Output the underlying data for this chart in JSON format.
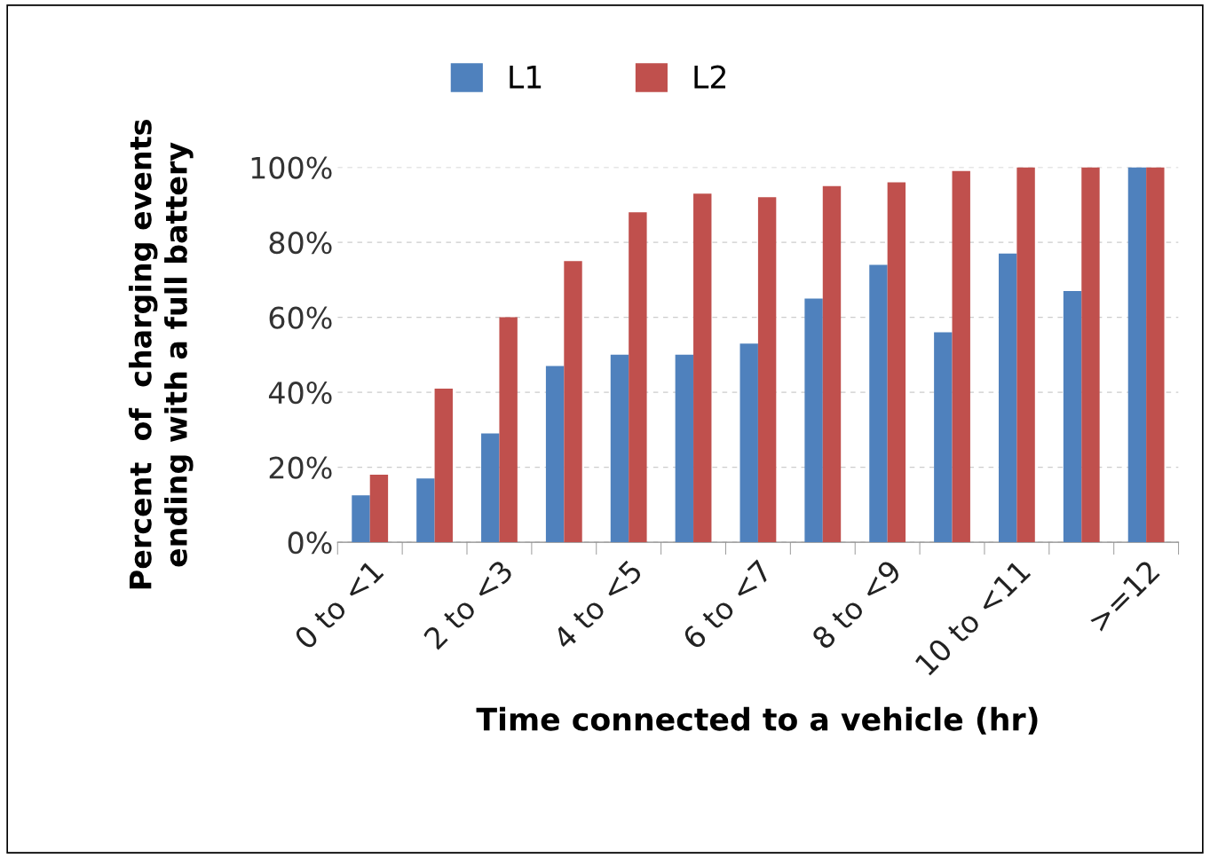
{
  "chart_data": {
    "type": "bar",
    "xlabel": "Time connected to a vehicle (hr)",
    "ylabel": "Percent  of  charging events\nending with a full battery",
    "categories": [
      "0 to <1",
      null,
      "2 to <3",
      null,
      "4 to <5",
      null,
      "6 to <7",
      null,
      "8 to <9",
      null,
      "10 to <11",
      null,
      ">=12"
    ],
    "series": [
      {
        "name": "L1",
        "color": "#4f81bd",
        "values": [
          12.5,
          17,
          29,
          47,
          50,
          50,
          53,
          65,
          74,
          56,
          77,
          67,
          100
        ]
      },
      {
        "name": "L2",
        "color": "#c0504d",
        "values": [
          18,
          41,
          60,
          75,
          88,
          93,
          92,
          95,
          96,
          99,
          100,
          100,
          100
        ]
      }
    ],
    "ylim": [
      0,
      100
    ],
    "yticks": [
      {
        "value": 0,
        "label": "0%"
      },
      {
        "value": 20,
        "label": "20%"
      },
      {
        "value": 40,
        "label": "40%"
      },
      {
        "value": 60,
        "label": "60%"
      },
      {
        "value": 80,
        "label": "80%"
      },
      {
        "value": 100,
        "label": "100%"
      }
    ],
    "grid": "y",
    "legend": "top"
  }
}
